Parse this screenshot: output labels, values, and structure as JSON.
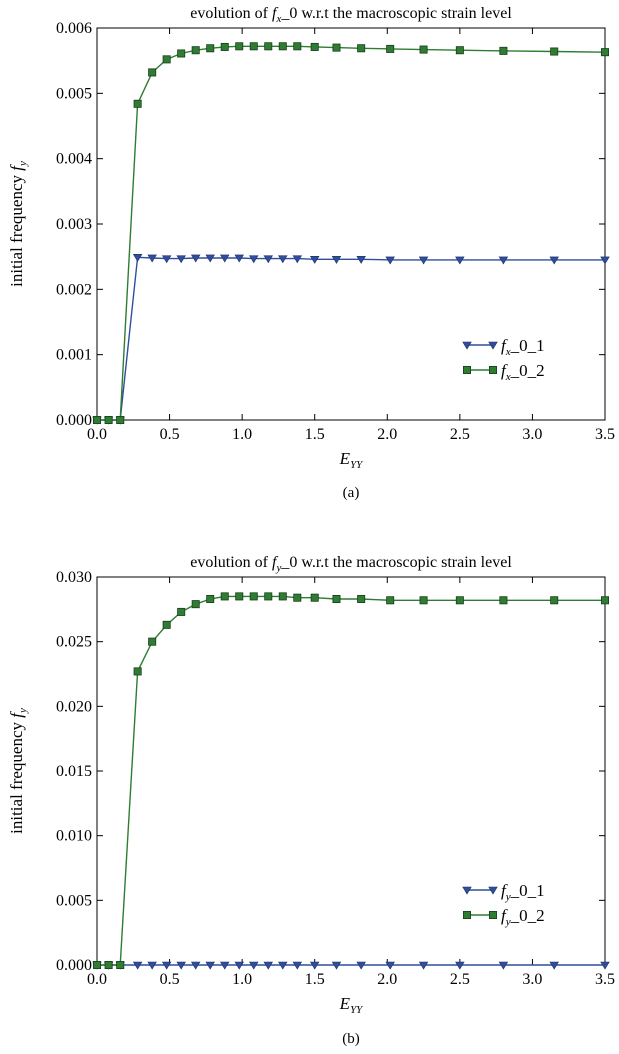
{
  "chart_data": [
    {
      "type": "line",
      "caption": "(a)",
      "title": {
        "pre": "evolution of ",
        "var_main": "f",
        "var_sub": "x",
        "post": "_0 w.r.t the macroscopic strain level"
      },
      "ylabel": {
        "main": "initial frequency ",
        "var": "f",
        "sub": "y"
      },
      "xlabel": {
        "main": "E",
        "sub": "YY"
      },
      "xlim": [
        0,
        3.5
      ],
      "ylim": [
        0,
        0.006
      ],
      "xticks": [
        "0.0",
        "0.5",
        "1.0",
        "1.5",
        "2.0",
        "2.5",
        "3.0",
        "3.5"
      ],
      "yticks": [
        "0.000",
        "0.001",
        "0.002",
        "0.003",
        "0.004",
        "0.005",
        "0.006"
      ],
      "legend_position": "lower-right",
      "x": [
        0,
        0.08,
        0.16,
        0.28,
        0.38,
        0.48,
        0.58,
        0.68,
        0.78,
        0.88,
        0.98,
        1.08,
        1.18,
        1.28,
        1.38,
        1.5,
        1.65,
        1.82,
        2.02,
        2.25,
        2.5,
        2.8,
        3.15,
        3.5
      ],
      "series": [
        {
          "name": {
            "main": "f",
            "sub": "x",
            "post": "_0_1"
          },
          "marker": "triangle-down",
          "color": "#2f4f9e",
          "values": [
            0,
            0,
            0,
            0.00249,
            0.00248,
            0.00247,
            0.00247,
            0.00248,
            0.00248,
            0.00248,
            0.00248,
            0.00247,
            0.00247,
            0.00247,
            0.00247,
            0.00246,
            0.00246,
            0.00246,
            0.00245,
            0.00245,
            0.00245,
            0.00245,
            0.00245,
            0.00245
          ]
        },
        {
          "name": {
            "main": "f",
            "sub": "x",
            "post": "_0_2"
          },
          "marker": "square",
          "color": "#2e7d32",
          "values": [
            0,
            0,
            0,
            0.00484,
            0.00532,
            0.00552,
            0.00561,
            0.00566,
            0.00569,
            0.00571,
            0.00572,
            0.00572,
            0.00572,
            0.00572,
            0.00572,
            0.00571,
            0.0057,
            0.00569,
            0.00568,
            0.00567,
            0.00566,
            0.00565,
            0.00564,
            0.00563
          ]
        }
      ]
    },
    {
      "type": "line",
      "caption": "(b)",
      "title": {
        "pre": "evolution of ",
        "var_main": "f",
        "var_sub": "y",
        "post": "_0 w.r.t the macroscopic strain level"
      },
      "ylabel": {
        "main": "initial frequency ",
        "var": "f",
        "sub": "y"
      },
      "xlabel": {
        "main": "E",
        "sub": "YY"
      },
      "xlim": [
        0,
        3.5
      ],
      "ylim": [
        0,
        0.03
      ],
      "xticks": [
        "0.0",
        "0.5",
        "1.0",
        "1.5",
        "2.0",
        "2.5",
        "3.0",
        "3.5"
      ],
      "yticks": [
        "0.000",
        "0.005",
        "0.010",
        "0.015",
        "0.020",
        "0.025",
        "0.030"
      ],
      "legend_position": "lower-right",
      "x": [
        0,
        0.08,
        0.16,
        0.28,
        0.38,
        0.48,
        0.58,
        0.68,
        0.78,
        0.88,
        0.98,
        1.08,
        1.18,
        1.28,
        1.38,
        1.5,
        1.65,
        1.82,
        2.02,
        2.25,
        2.5,
        2.8,
        3.15,
        3.5
      ],
      "series": [
        {
          "name": {
            "main": "f",
            "sub": "y",
            "post": "_0_1"
          },
          "marker": "triangle-down",
          "color": "#2f4f9e",
          "values": [
            0,
            0,
            0,
            0,
            0,
            0,
            0,
            0,
            0,
            0,
            0,
            0,
            0,
            0,
            0,
            0,
            0,
            0,
            0,
            0,
            0,
            0,
            0,
            0
          ]
        },
        {
          "name": {
            "main": "f",
            "sub": "y",
            "post": "_0_2"
          },
          "marker": "square",
          "color": "#2e7d32",
          "values": [
            0,
            0,
            0,
            0.0227,
            0.025,
            0.0263,
            0.0273,
            0.0279,
            0.0283,
            0.0285,
            0.0285,
            0.0285,
            0.0285,
            0.0285,
            0.0284,
            0.0284,
            0.0283,
            0.0283,
            0.0282,
            0.0282,
            0.0282,
            0.0282,
            0.0282,
            0.0282
          ]
        }
      ]
    }
  ]
}
